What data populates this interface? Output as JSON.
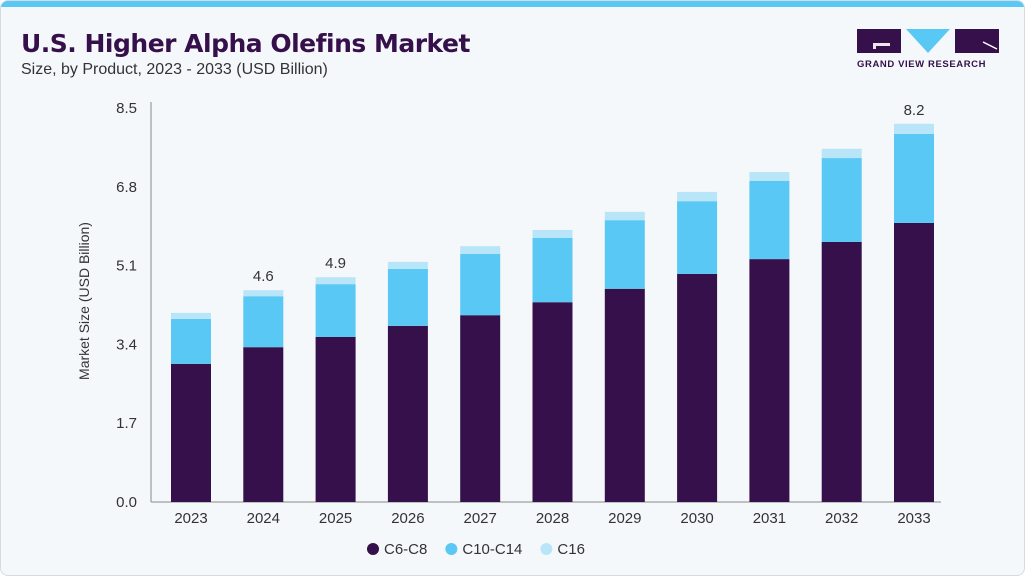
{
  "header": {
    "title": "U.S. Higher Alpha Olefins Market",
    "subtitle": "Size, by Product, 2023 - 2033 (USD Billion)"
  },
  "logo": {
    "text": "GRAND VIEW RESEARCH"
  },
  "chart_data": {
    "type": "bar",
    "stacked": true,
    "title": "U.S. Higher Alpha Olefins Market",
    "subtitle": "Size, by Product, 2023 - 2033 (USD Billion)",
    "xlabel": "",
    "ylabel": "Market Size (USD Billion)",
    "ylim": [
      0,
      8.5
    ],
    "yticks": [
      "0.0",
      "1.7",
      "3.4",
      "5.1",
      "6.8",
      "8.5"
    ],
    "categories": [
      "2023",
      "2024",
      "2025",
      "2026",
      "2027",
      "2028",
      "2029",
      "2030",
      "2031",
      "2032",
      "2033"
    ],
    "series": [
      {
        "name": "C6-C8",
        "color": "#35104a",
        "values": [
          2.98,
          3.34,
          3.56,
          3.8,
          4.03,
          4.31,
          4.6,
          4.92,
          5.24,
          5.61,
          6.02
        ]
      },
      {
        "name": "C10-C14",
        "color": "#5ac8f5",
        "values": [
          0.97,
          1.1,
          1.14,
          1.23,
          1.32,
          1.39,
          1.48,
          1.57,
          1.69,
          1.81,
          1.92
        ]
      },
      {
        "name": "C16",
        "color": "#b8e6f8",
        "values": [
          0.13,
          0.13,
          0.15,
          0.15,
          0.17,
          0.17,
          0.18,
          0.2,
          0.19,
          0.2,
          0.22
        ]
      }
    ],
    "data_labels": [
      {
        "category": "2024",
        "text": "4.6"
      },
      {
        "category": "2025",
        "text": "4.9"
      },
      {
        "category": "2033",
        "text": "8.2"
      }
    ],
    "grid": false,
    "legend": "bottom"
  }
}
